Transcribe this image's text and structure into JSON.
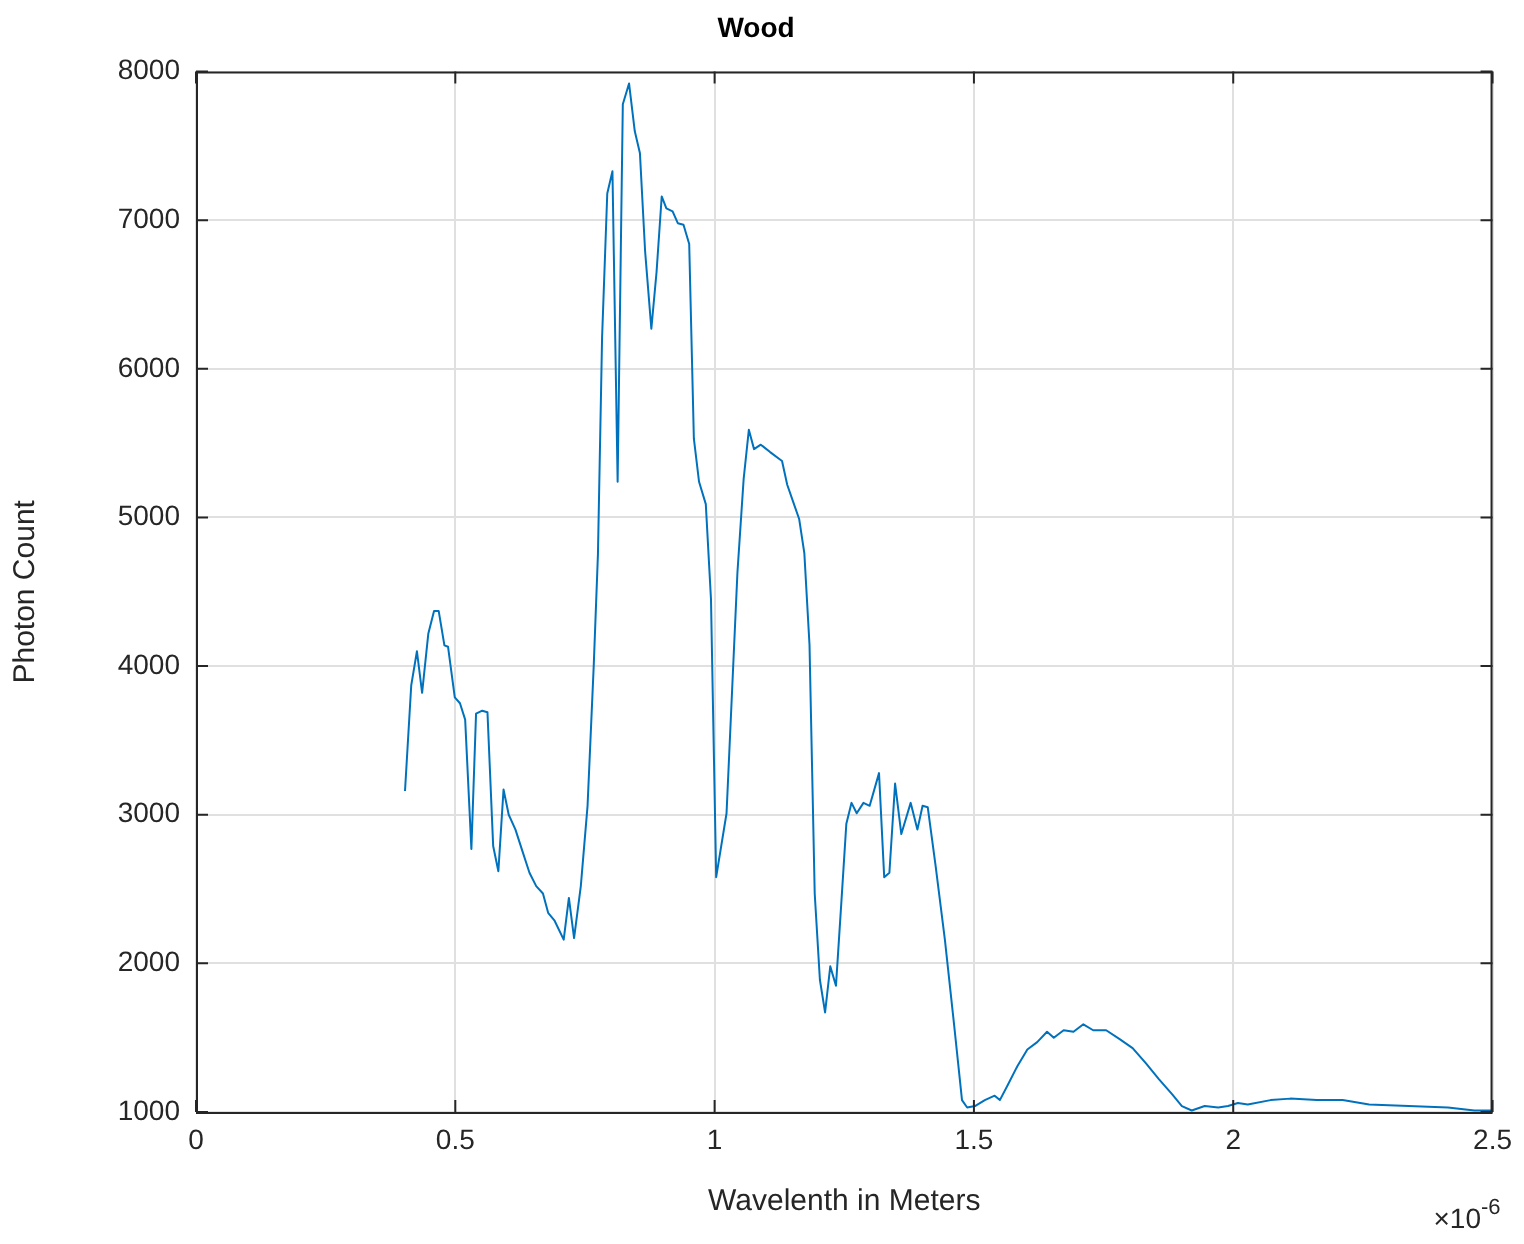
{
  "chart_data": {
    "type": "line",
    "title": "Wood",
    "xlabel": "Wavelenth in Meters",
    "ylabel": "Photon Count",
    "annotations": [
      "×10$^{-6}$"
    ],
    "x": [
      0.403,
      0.415,
      0.426,
      0.436,
      0.448,
      0.459,
      0.468,
      0.479,
      0.486,
      0.499,
      0.509,
      0.519,
      0.531,
      0.54,
      0.552,
      0.562,
      0.573,
      0.583,
      0.593,
      0.603,
      0.616,
      0.628,
      0.643,
      0.656,
      0.669,
      0.679,
      0.691,
      0.709,
      0.719,
      0.729,
      0.742,
      0.755,
      0.767,
      0.775,
      0.783,
      0.793,
      0.803,
      0.813,
      0.823,
      0.835,
      0.846,
      0.856,
      0.866,
      0.878,
      0.888,
      0.898,
      0.907,
      0.919,
      0.929,
      0.94,
      0.951,
      0.96,
      0.97,
      0.983,
      0.993,
      1.003,
      1.023,
      1.044,
      1.056,
      1.066,
      1.076,
      1.089,
      1.107,
      1.13,
      1.14,
      1.152,
      1.163,
      1.173,
      1.183,
      1.193,
      1.203,
      1.213,
      1.223,
      1.234,
      1.244,
      1.254,
      1.264,
      1.274,
      1.287,
      1.299,
      1.317,
      1.327,
      1.337,
      1.348,
      1.36,
      1.378,
      1.391,
      1.401,
      1.411,
      1.426,
      1.444,
      1.462,
      1.477,
      1.487,
      1.502,
      1.521,
      1.54,
      1.55,
      1.565,
      1.584,
      1.603,
      1.622,
      1.641,
      1.654,
      1.673,
      1.692,
      1.711,
      1.73,
      1.755,
      1.781,
      1.806,
      1.831,
      1.857,
      1.882,
      1.901,
      1.92,
      1.945,
      1.971,
      1.99,
      2.009,
      2.028,
      2.072,
      2.11,
      2.161,
      2.211,
      2.262,
      2.338,
      2.414,
      2.465,
      2.5
    ],
    "series": [
      {
        "color": "#0072bd",
        "values": [
          3160,
          3870,
          4100,
          3820,
          4220,
          4370,
          4370,
          4140,
          4130,
          3790,
          3750,
          3640,
          2770,
          3680,
          3700,
          3690,
          2790,
          2620,
          3170,
          3000,
          2900,
          2770,
          2610,
          2520,
          2470,
          2340,
          2290,
          2160,
          2440,
          2170,
          2520,
          3060,
          4010,
          4750,
          6210,
          7180,
          7330,
          5240,
          7780,
          7920,
          7600,
          7450,
          6790,
          6270,
          6650,
          7160,
          7080,
          7060,
          6980,
          6970,
          6840,
          5530,
          5240,
          5090,
          4450,
          2580,
          3010,
          4630,
          5260,
          5590,
          5460,
          5490,
          5440,
          5380,
          5220,
          5100,
          4990,
          4760,
          4140,
          2470,
          1890,
          1670,
          1980,
          1850,
          2390,
          2940,
          3080,
          3010,
          3080,
          3060,
          3280,
          2580,
          2610,
          3210,
          2870,
          3080,
          2900,
          3060,
          3050,
          2660,
          2160,
          1580,
          1080,
          1030,
          1040,
          1080,
          1110,
          1080,
          1180,
          1310,
          1420,
          1470,
          1540,
          1500,
          1550,
          1540,
          1590,
          1550,
          1550,
          1490,
          1430,
          1330,
          1220,
          1120,
          1040,
          1010,
          1040,
          1030,
          1040,
          1060,
          1050,
          1080,
          1090,
          1080,
          1080,
          1050,
          1040,
          1030,
          1010,
          1010
        ]
      }
    ],
    "xlim": [
      0,
      2.5
    ],
    "xticks": [
      0,
      0.5,
      1,
      1.5,
      2,
      2.5
    ],
    "ylim": [
      1000,
      8000
    ],
    "yticks": [
      1000,
      2000,
      3000,
      4000,
      5000,
      6000,
      7000,
      8000
    ],
    "grid": true,
    "legend": false,
    "marker": "none",
    "line_style": "solid"
  }
}
